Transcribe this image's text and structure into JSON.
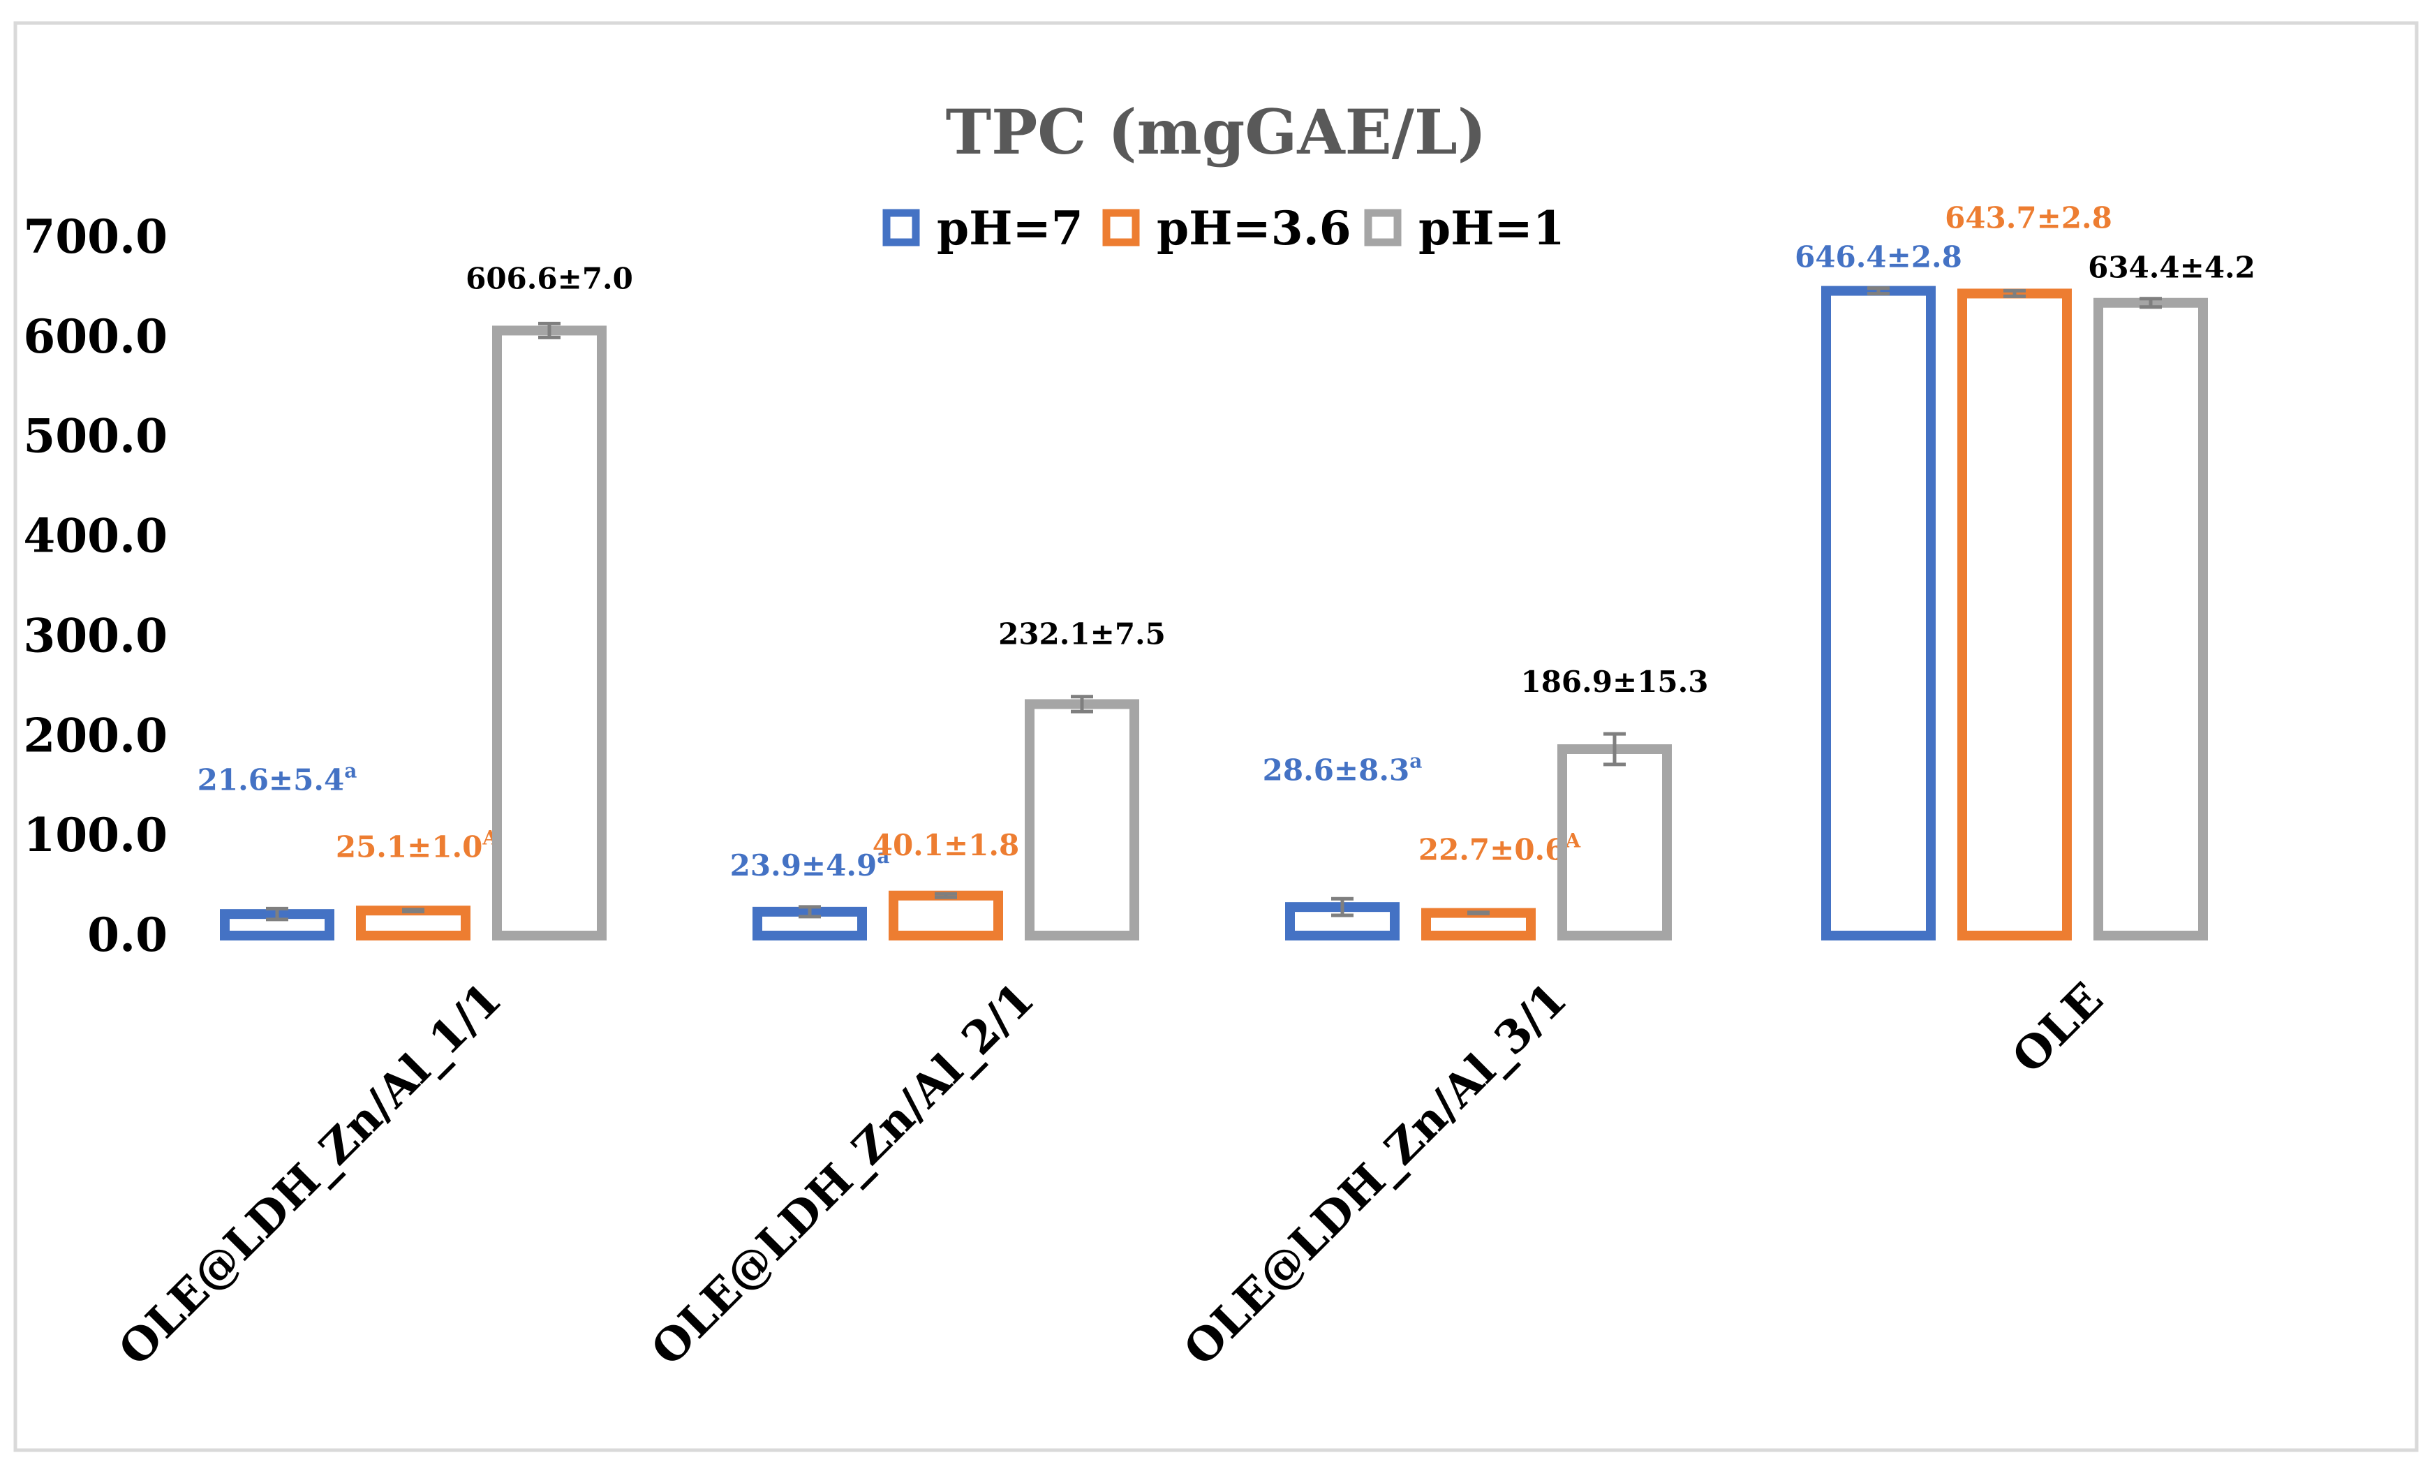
{
  "chart_data": {
    "type": "bar",
    "title": "TPC (mgGAE/L)",
    "xlabel": "",
    "ylabel": "",
    "ylim": [
      0,
      700
    ],
    "yticks": [
      "0.0",
      "100.0",
      "200.0",
      "300.0",
      "400.0",
      "500.0",
      "600.0",
      "700.0"
    ],
    "grid": false,
    "legend_position": "top",
    "categories": [
      "OLE@LDH_Zn/Al_1/1",
      "OLE@LDH_Zn/Al_2/1",
      "OLE@LDH_Zn/Al_3/1",
      "OLE"
    ],
    "series": [
      {
        "name": "pH=7",
        "color": "#4472C4",
        "values": [
          21.6,
          23.9,
          28.6,
          646.4
        ],
        "errors": [
          5.4,
          4.9,
          8.3,
          2.8
        ],
        "labels": [
          "21.6±5.4",
          "23.9±4.9",
          "28.6±8.3",
          "646.4±2.8"
        ],
        "label_superscripts": [
          "a",
          "a",
          "a",
          ""
        ]
      },
      {
        "name": "pH=3.6",
        "color": "#ED7D31",
        "values": [
          25.1,
          40.1,
          22.7,
          643.7
        ],
        "errors": [
          1.0,
          1.8,
          0.6,
          2.8
        ],
        "labels": [
          "25.1±1.0",
          "40.1±1.8",
          "22.7±0.6",
          "643.7±2.8"
        ],
        "label_superscripts": [
          "A",
          "",
          "A",
          ""
        ]
      },
      {
        "name": "pH=1",
        "color": "#A5A5A5",
        "values": [
          606.6,
          232.1,
          186.9,
          634.4
        ],
        "errors": [
          7.0,
          7.5,
          15.3,
          4.2
        ],
        "labels": [
          "606.6±7.0",
          "232.1±7.5",
          "186.9±15.3",
          "634.4±4.2"
        ],
        "label_superscripts": [
          "",
          "",
          "",
          ""
        ]
      }
    ]
  }
}
